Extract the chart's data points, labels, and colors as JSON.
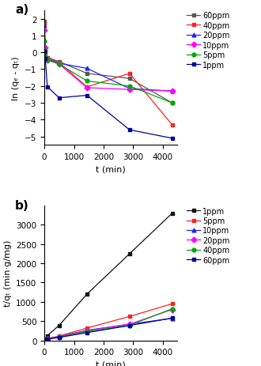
{
  "panel_a": {
    "title": "a)",
    "xlabel": "t (min)",
    "ylabel": "ln (qₑ - qₜ)",
    "xlim": [
      0,
      4500
    ],
    "ylim": [
      -5.5,
      2.5
    ],
    "yticks": [
      -5,
      -4,
      -3,
      -2,
      -1,
      0,
      1,
      2
    ],
    "xticks": [
      0,
      1000,
      2000,
      3000,
      4000
    ],
    "series": [
      {
        "label": "60ppm",
        "color": "#555555",
        "marker": "s",
        "x": [
          0,
          30,
          100,
          500,
          1440,
          2880,
          4320
        ],
        "y": [
          1.85,
          0.0,
          -0.3,
          -0.55,
          -1.25,
          -1.55,
          -3.0
        ]
      },
      {
        "label": "40ppm",
        "color": "#ff2020",
        "marker": "s",
        "x": [
          0,
          30,
          100,
          500,
          1440,
          2880,
          4320
        ],
        "y": [
          1.75,
          -0.1,
          -0.35,
          -0.6,
          -2.05,
          -1.25,
          -4.3
        ]
      },
      {
        "label": "20ppm",
        "color": "#2020ff",
        "marker": "^",
        "x": [
          0,
          30,
          100,
          500,
          1440,
          2880,
          4320
        ],
        "y": [
          1.6,
          -0.2,
          -0.4,
          -0.65,
          -0.95,
          -2.15,
          -2.3
        ]
      },
      {
        "label": "10ppm",
        "color": "#ff00ff",
        "marker": "D",
        "x": [
          0,
          30,
          100,
          500,
          1440,
          2880,
          4320
        ],
        "y": [
          1.3,
          0.3,
          -0.45,
          -0.7,
          -2.1,
          -2.2,
          -2.3
        ]
      },
      {
        "label": "5ppm",
        "color": "#00aa00",
        "marker": "o",
        "x": [
          0,
          30,
          100,
          500,
          1440,
          2880,
          4320
        ],
        "y": [
          0.65,
          0.1,
          -0.45,
          -0.7,
          -1.7,
          -2.0,
          -3.0
        ]
      },
      {
        "label": "1ppm",
        "color": "#000099",
        "marker": "s",
        "x": [
          0,
          30,
          100,
          500,
          1440,
          2880,
          4320
        ],
        "y": [
          0.05,
          -0.35,
          -2.05,
          -2.7,
          -2.55,
          -4.6,
          -5.1
        ]
      }
    ]
  },
  "panel_b": {
    "title": "b)",
    "xlabel": "t (min)",
    "ylabel": "t/qₜ (min·g/mg)",
    "xlim": [
      0,
      4500
    ],
    "ylim": [
      0,
      3500
    ],
    "yticks": [
      0,
      500,
      1000,
      1500,
      2000,
      2500,
      3000
    ],
    "xticks": [
      0,
      1000,
      2000,
      3000,
      4000
    ],
    "series": [
      {
        "label": "1ppm",
        "color": "#111111",
        "marker": "s",
        "x": [
          0,
          30,
          100,
          500,
          1440,
          2880,
          4320
        ],
        "y": [
          0,
          40,
          120,
          390,
          1200,
          2250,
          3300
        ]
      },
      {
        "label": "5ppm",
        "color": "#ff2020",
        "marker": "s",
        "x": [
          0,
          30,
          100,
          500,
          1440,
          2880,
          4320
        ],
        "y": [
          0,
          20,
          50,
          110,
          320,
          620,
          950
        ]
      },
      {
        "label": "10ppm",
        "color": "#2020ff",
        "marker": "^",
        "x": [
          0,
          30,
          100,
          500,
          1440,
          2880,
          4320
        ],
        "y": [
          0,
          15,
          40,
          100,
          260,
          420,
          570
        ]
      },
      {
        "label": "20ppm",
        "color": "#ff00ff",
        "marker": "D",
        "x": [
          0,
          30,
          100,
          500,
          1440,
          2880,
          4320
        ],
        "y": [
          0,
          15,
          38,
          95,
          250,
          420,
          800
        ]
      },
      {
        "label": "40ppm",
        "color": "#00aa00",
        "marker": "o",
        "x": [
          0,
          30,
          100,
          500,
          1440,
          2880,
          4320
        ],
        "y": [
          0,
          12,
          32,
          85,
          230,
          390,
          820
        ]
      },
      {
        "label": "60ppm",
        "color": "#000099",
        "marker": "s",
        "x": [
          0,
          30,
          100,
          500,
          1440,
          2880,
          4320
        ],
        "y": [
          0,
          10,
          28,
          75,
          200,
          385,
          580
        ]
      }
    ]
  }
}
